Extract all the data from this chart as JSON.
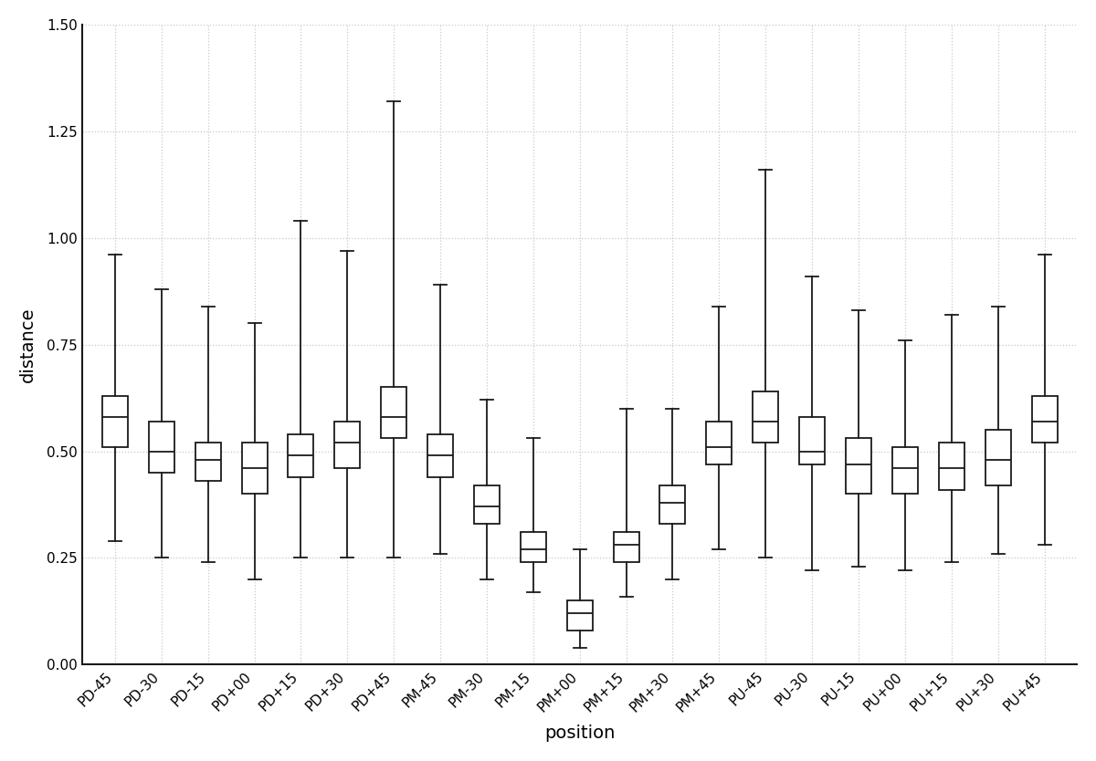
{
  "positions": [
    "PD-45",
    "PD-30",
    "PD-15",
    "PD+00",
    "PD+15",
    "PD+30",
    "PD+45",
    "PM-45",
    "PM-30",
    "PM-15",
    "PM+00",
    "PM+15",
    "PM+30",
    "PM+45",
    "PU-45",
    "PU-30",
    "PU-15",
    "PU+00",
    "PU+15",
    "PU+30",
    "PU+45"
  ],
  "box_stats": [
    {
      "whislo": 0.29,
      "q1": 0.51,
      "med": 0.58,
      "q3": 0.63,
      "whishi": 0.96
    },
    {
      "whislo": 0.25,
      "q1": 0.45,
      "med": 0.5,
      "q3": 0.57,
      "whishi": 0.88
    },
    {
      "whislo": 0.24,
      "q1": 0.43,
      "med": 0.48,
      "q3": 0.52,
      "whishi": 0.84
    },
    {
      "whislo": 0.2,
      "q1": 0.4,
      "med": 0.46,
      "q3": 0.52,
      "whishi": 0.8
    },
    {
      "whislo": 0.25,
      "q1": 0.44,
      "med": 0.49,
      "q3": 0.54,
      "whishi": 1.04
    },
    {
      "whislo": 0.25,
      "q1": 0.46,
      "med": 0.52,
      "q3": 0.57,
      "whishi": 0.97
    },
    {
      "whislo": 0.25,
      "q1": 0.53,
      "med": 0.58,
      "q3": 0.65,
      "whishi": 1.32
    },
    {
      "whislo": 0.26,
      "q1": 0.44,
      "med": 0.49,
      "q3": 0.54,
      "whishi": 0.89
    },
    {
      "whislo": 0.2,
      "q1": 0.33,
      "med": 0.37,
      "q3": 0.42,
      "whishi": 0.62
    },
    {
      "whislo": 0.17,
      "q1": 0.24,
      "med": 0.27,
      "q3": 0.31,
      "whishi": 0.53
    },
    {
      "whislo": 0.04,
      "q1": 0.08,
      "med": 0.12,
      "q3": 0.15,
      "whishi": 0.27
    },
    {
      "whislo": 0.16,
      "q1": 0.24,
      "med": 0.28,
      "q3": 0.31,
      "whishi": 0.6
    },
    {
      "whislo": 0.2,
      "q1": 0.33,
      "med": 0.38,
      "q3": 0.42,
      "whishi": 0.6
    },
    {
      "whislo": 0.27,
      "q1": 0.47,
      "med": 0.51,
      "q3": 0.57,
      "whishi": 0.84
    },
    {
      "whislo": 0.25,
      "q1": 0.52,
      "med": 0.57,
      "q3": 0.64,
      "whishi": 1.16
    },
    {
      "whislo": 0.22,
      "q1": 0.47,
      "med": 0.5,
      "q3": 0.58,
      "whishi": 0.91
    },
    {
      "whislo": 0.23,
      "q1": 0.4,
      "med": 0.47,
      "q3": 0.53,
      "whishi": 0.83
    },
    {
      "whislo": 0.22,
      "q1": 0.4,
      "med": 0.46,
      "q3": 0.51,
      "whishi": 0.76
    },
    {
      "whislo": 0.24,
      "q1": 0.41,
      "med": 0.46,
      "q3": 0.52,
      "whishi": 0.82
    },
    {
      "whislo": 0.26,
      "q1": 0.42,
      "med": 0.48,
      "q3": 0.55,
      "whishi": 0.84
    },
    {
      "whislo": 0.28,
      "q1": 0.52,
      "med": 0.57,
      "q3": 0.63,
      "whishi": 0.96
    }
  ],
  "ylabel": "distance",
  "xlabel": "position",
  "ylim": [
    0.0,
    1.5
  ],
  "yticks": [
    0.0,
    0.25,
    0.5,
    0.75,
    1.0,
    1.25,
    1.5
  ],
  "box_color": "#ffffff",
  "box_edge_color": "#1a1a1a",
  "whisker_color": "#1a1a1a",
  "median_color": "#1a1a1a",
  "grid_color": "#c8c8c8",
  "grid_style": ":",
  "background_color": "#ffffff",
  "box_width": 0.55,
  "ylabel_fontsize": 14,
  "xlabel_fontsize": 14,
  "tick_fontsize": 11,
  "linewidth": 1.3
}
